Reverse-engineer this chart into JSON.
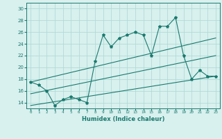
{
  "xlabel": "Humidex (Indice chaleur)",
  "x": [
    0,
    1,
    2,
    3,
    4,
    5,
    6,
    7,
    8,
    9,
    10,
    11,
    12,
    13,
    14,
    15,
    16,
    17,
    18,
    19,
    20,
    21,
    22,
    23
  ],
  "line1": [
    17.5,
    17.0,
    16.0,
    13.5,
    14.5,
    15.0,
    14.5,
    14.0,
    21.0,
    25.5,
    23.5,
    25.0,
    25.5,
    26.0,
    25.5,
    22.0,
    27.0,
    27.0,
    28.5,
    22.0,
    18.0,
    19.5,
    18.5,
    18.5
  ],
  "line2_x": [
    0,
    23
  ],
  "line2_y": [
    17.5,
    25.0
  ],
  "line3_x": [
    0,
    23
  ],
  "line3_y": [
    15.5,
    22.0
  ],
  "line4_x": [
    0,
    23
  ],
  "line4_y": [
    13.5,
    18.5
  ],
  "ylim": [
    13,
    31
  ],
  "xlim": [
    -0.5,
    23.5
  ],
  "yticks": [
    14,
    16,
    18,
    20,
    22,
    24,
    26,
    28,
    30
  ],
  "xticks": [
    0,
    1,
    2,
    3,
    4,
    5,
    6,
    7,
    8,
    9,
    10,
    11,
    12,
    13,
    14,
    15,
    16,
    17,
    18,
    19,
    20,
    21,
    22,
    23
  ],
  "line_color": "#1a7a6e",
  "bg_color": "#d8f0ee",
  "grid_color": "#aad8d4"
}
